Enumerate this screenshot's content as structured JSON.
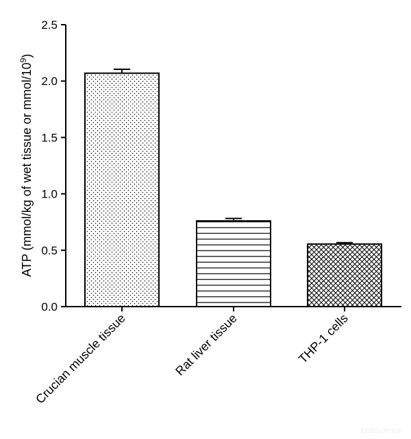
{
  "chart_data": {
    "type": "bar",
    "categories": [
      "Crucian muscle tissue",
      "Rat liver tissue",
      "THP-1 cells"
    ],
    "values": [
      2.07,
      0.76,
      0.555
    ],
    "errors": [
      0.035,
      0.022,
      0.012
    ],
    "patterns": [
      "dots",
      "horizontal-lines",
      "crosshatch"
    ],
    "ylabel_main": "ATP (mmol/kg of wet tissue or mmol/10",
    "ylabel_sup": "9",
    "ylabel_end": ")",
    "ylim": [
      0,
      2.5
    ],
    "yticks": [
      "0.0",
      "0.5",
      "1.0",
      "1.5",
      "2.0",
      "2.5"
    ],
    "grid": false,
    "legend": "none"
  },
  "watermark": "Elabscience"
}
